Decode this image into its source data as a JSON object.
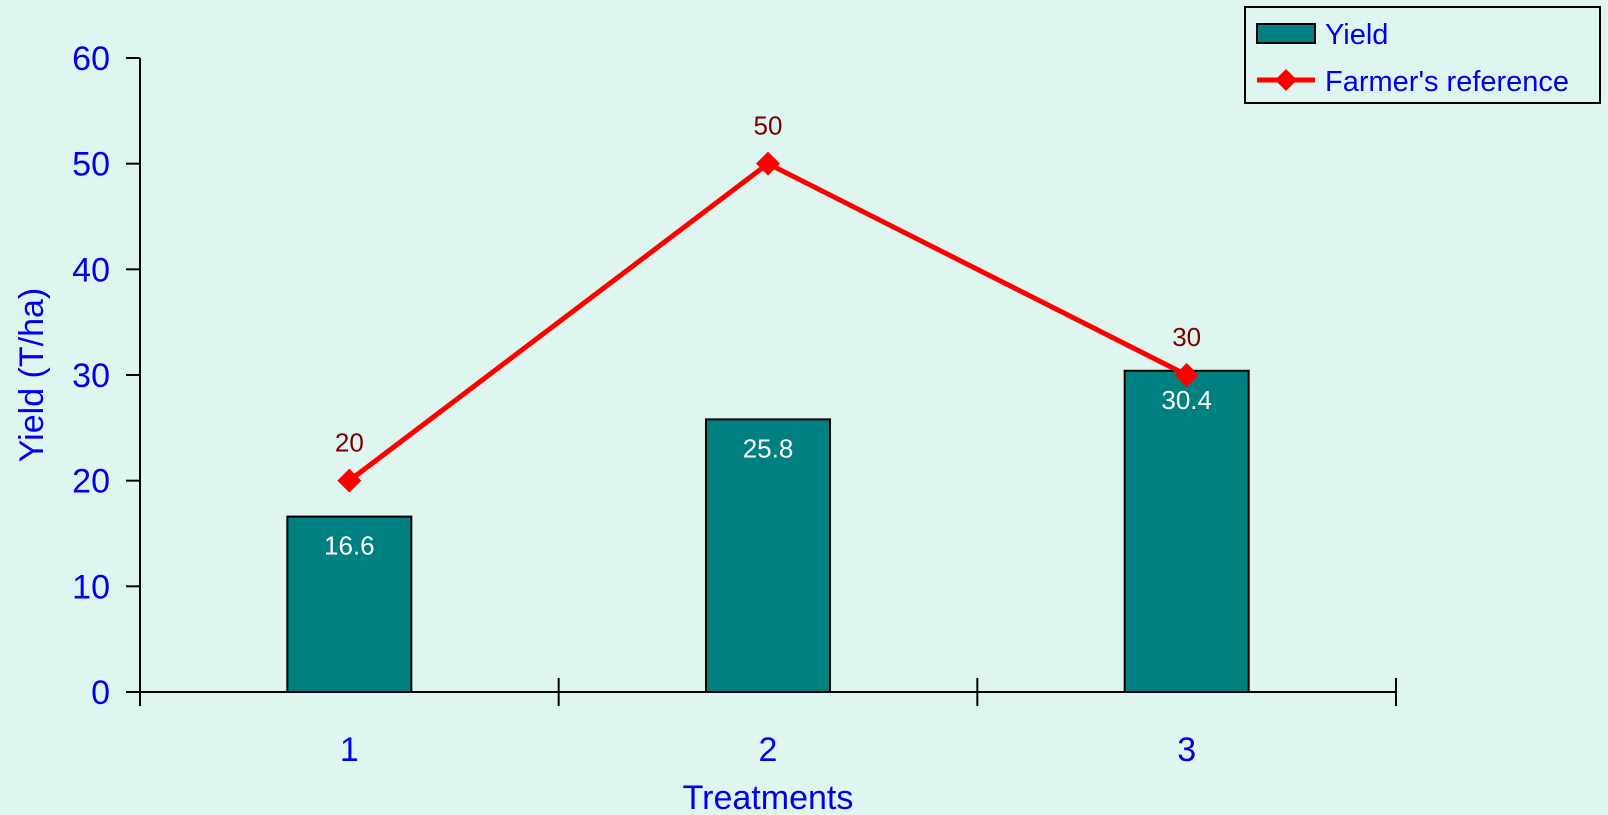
{
  "chart_data": {
    "type": "bar",
    "categories": [
      "1",
      "2",
      "3"
    ],
    "xlabel": "Treatments",
    "ylabel": "Yield (T/ha)",
    "ylim": [
      0,
      60
    ],
    "yticks": [
      "0",
      "10",
      "20",
      "30",
      "40",
      "50",
      "60"
    ],
    "grid": false,
    "legend_position": "top-right",
    "series": [
      {
        "name": "Yield",
        "kind": "bar",
        "values": [
          16.6,
          25.8,
          30.4
        ],
        "data_labels": [
          "16.6",
          "25.8",
          "30.4"
        ],
        "color": "#008080"
      },
      {
        "name": "Farmer's reference",
        "kind": "line",
        "marker": "diamond",
        "values": [
          20,
          50,
          30
        ],
        "data_labels": [
          "20",
          "50",
          "30"
        ],
        "color": "#ff0000"
      }
    ]
  },
  "colors": {
    "background": "#dff5f0",
    "axis": "#000000",
    "text": "#0000ee",
    "line_label": "#7a0000",
    "bar_label": "#ffffff"
  }
}
